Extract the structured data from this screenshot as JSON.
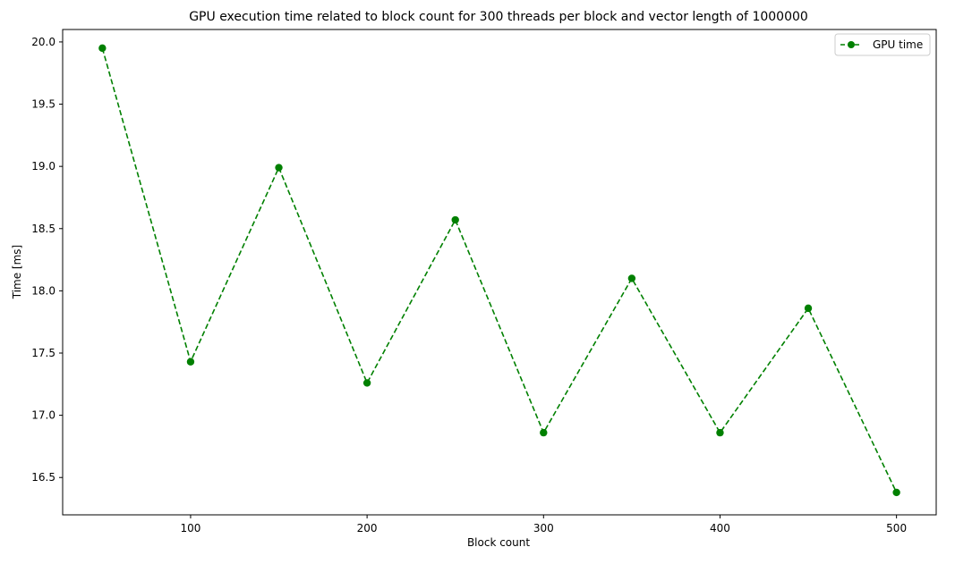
{
  "chart_data": {
    "type": "line",
    "title": "GPU execution time related to block count for 300 threads per block and vector length of 1000000",
    "xlabel": "Block count",
    "ylabel": "Time [ms]",
    "xlim": [
      27.5,
      522.5
    ],
    "ylim": [
      16.2,
      20.1
    ],
    "x_ticks": [
      100,
      200,
      300,
      400,
      500
    ],
    "y_ticks": [
      16.5,
      17.0,
      17.5,
      18.0,
      18.5,
      19.0,
      19.5,
      20.0
    ],
    "grid": false,
    "legend_position": "top-right",
    "series": [
      {
        "name": "GPU time",
        "color": "#008000",
        "line_style": "dashed",
        "marker": "circle",
        "x": [
          50,
          100,
          150,
          200,
          250,
          300,
          350,
          400,
          450,
          500
        ],
        "y": [
          19.95,
          17.43,
          18.99,
          17.26,
          18.57,
          16.86,
          18.1,
          16.86,
          17.86,
          16.38
        ]
      }
    ]
  }
}
